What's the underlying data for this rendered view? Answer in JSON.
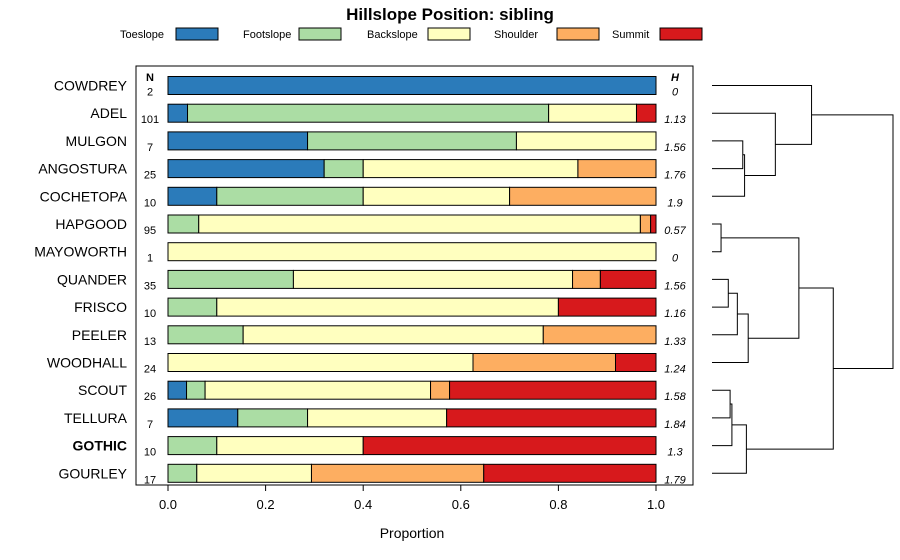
{
  "chart_data": {
    "type": "bar",
    "stacked": true,
    "orientation": "horizontal",
    "title": "Hillslope Position: sibling",
    "xlabel": "Proportion",
    "xlim": [
      0,
      1
    ],
    "xticks": [
      "0.0",
      "0.2",
      "0.4",
      "0.6",
      "0.8",
      "1.0"
    ],
    "n_header": "N",
    "h_header": "H",
    "legend_position": "top",
    "series": [
      {
        "name": "Toeslope",
        "color": "#2b7bba"
      },
      {
        "name": "Footslope",
        "color": "#abdda4"
      },
      {
        "name": "Backslope",
        "color": "#ffffbf"
      },
      {
        "name": "Shoulder",
        "color": "#fdae61"
      },
      {
        "name": "Summit",
        "color": "#d7191c"
      }
    ],
    "rows": [
      {
        "label": "COWDREY",
        "n": "2",
        "h": "0",
        "bold": false,
        "values": [
          1.0,
          0,
          0,
          0,
          0
        ]
      },
      {
        "label": "ADEL",
        "n": "101",
        "h": "1.13",
        "bold": false,
        "values": [
          0.04,
          0.74,
          0.18,
          0,
          0.04
        ]
      },
      {
        "label": "MULGON",
        "n": "7",
        "h": "1.56",
        "bold": false,
        "values": [
          0.286,
          0.428,
          0.286,
          0,
          0
        ]
      },
      {
        "label": "ANGOSTURA",
        "n": "25",
        "h": "1.76",
        "bold": false,
        "values": [
          0.32,
          0.08,
          0.44,
          0.16,
          0
        ]
      },
      {
        "label": "COCHETOPA",
        "n": "10",
        "h": "1.9",
        "bold": false,
        "values": [
          0.1,
          0.3,
          0.3,
          0.3,
          0
        ]
      },
      {
        "label": "HAPGOOD",
        "n": "95",
        "h": "0.57",
        "bold": false,
        "values": [
          0,
          0.063,
          0.905,
          0.021,
          0.011
        ]
      },
      {
        "label": "MAYOWORTH",
        "n": "1",
        "h": "0",
        "bold": false,
        "values": [
          0,
          0,
          1.0,
          0,
          0
        ]
      },
      {
        "label": "QUANDER",
        "n": "35",
        "h": "1.56",
        "bold": false,
        "values": [
          0,
          0.257,
          0.572,
          0.057,
          0.114
        ]
      },
      {
        "label": "FRISCO",
        "n": "10",
        "h": "1.16",
        "bold": false,
        "values": [
          0,
          0.1,
          0.7,
          0,
          0.2
        ]
      },
      {
        "label": "PEELER",
        "n": "13",
        "h": "1.33",
        "bold": false,
        "values": [
          0,
          0.154,
          0.615,
          0.231,
          0
        ]
      },
      {
        "label": "WOODHALL",
        "n": "24",
        "h": "1.24",
        "bold": false,
        "values": [
          0,
          0,
          0.625,
          0.292,
          0.083
        ]
      },
      {
        "label": "SCOUT",
        "n": "26",
        "h": "1.58",
        "bold": false,
        "values": [
          0.038,
          0.038,
          0.462,
          0.039,
          0.423
        ]
      },
      {
        "label": "TELLURA",
        "n": "7",
        "h": "1.84",
        "bold": false,
        "values": [
          0.143,
          0.143,
          0.285,
          0,
          0.429
        ]
      },
      {
        "label": "GOTHIC",
        "n": "10",
        "h": "1.3",
        "bold": true,
        "values": [
          0,
          0.1,
          0.3,
          0,
          0.6
        ]
      },
      {
        "label": "GOURLEY",
        "n": "17",
        "h": "1.79",
        "bold": false,
        "values": [
          0,
          0.059,
          0.235,
          0.353,
          0.353
        ]
      }
    ],
    "dendrogram": {
      "leaf_order": [
        "COWDREY",
        "ADEL",
        "MULGON",
        "ANGOSTURA",
        "COCHETOPA",
        "HAPGOOD",
        "MAYOWORTH",
        "QUANDER",
        "FRISCO",
        "PEELER",
        "WOODHALL",
        "SCOUT",
        "TELLURA",
        "GOTHIC",
        "GOURLEY"
      ],
      "tree": [
        [
          0,
          [
            1,
            [
              [
                2,
                3
              ],
              4
            ]
          ]
        ],
        [
          [
            [
              5,
              6
            ],
            [
              [
                [
                  7,
                  8
                ],
                9
              ],
              10
            ]
          ],
          [
            [
              [
                11,
                12
              ],
              13
            ],
            14
          ]
        ]
      ],
      "merge_heights": {
        "0-1-2-3-4": 0.55,
        "1-2-3-4": 0.35,
        "2-3-4": 0.18,
        "2-3": 0.17,
        "5-6": 0.05,
        "7-8": 0.09,
        "7-8-9": 0.14,
        "7-8-9-10": 0.2,
        "5-6-7-8-9-10": 0.48,
        "11-12": 0.1,
        "11-12-13": 0.11,
        "11-12-13-14": 0.19,
        "5-14": 0.67,
        "all": 1.0
      }
    }
  }
}
